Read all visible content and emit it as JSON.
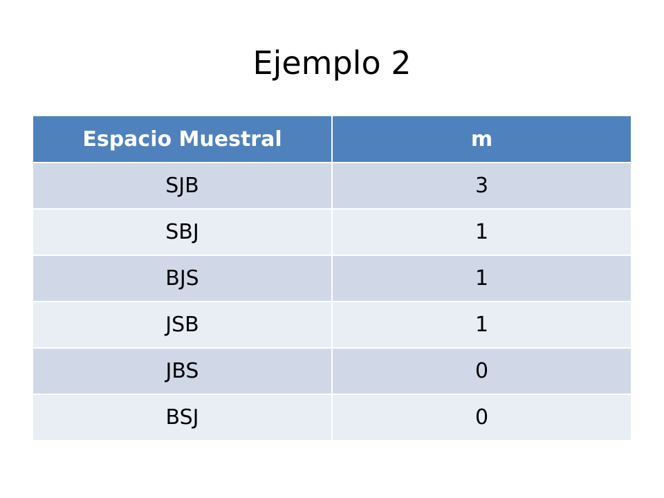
{
  "slide": {
    "title": "Ejemplo 2"
  },
  "table": {
    "headers": [
      "Espacio Muestral",
      "m"
    ],
    "rows": [
      [
        "SJB",
        "3"
      ],
      [
        "SBJ",
        "1"
      ],
      [
        "BJS",
        "1"
      ],
      [
        "JSB",
        "1"
      ],
      [
        "JBS",
        "0"
      ],
      [
        "BSJ",
        "0"
      ]
    ],
    "colors": {
      "header": "#4f81bd",
      "row_dark": "#d0d8e8",
      "row_light": "#e9edf4"
    }
  }
}
